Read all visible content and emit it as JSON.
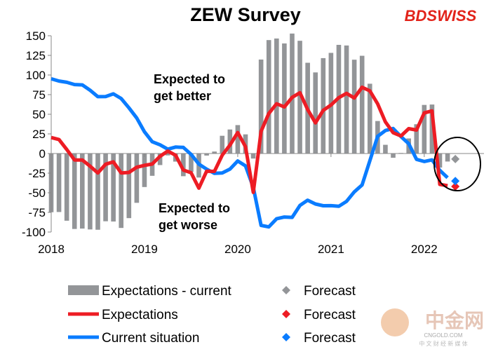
{
  "chart_data": {
    "type": "bar+line",
    "title": "ZEW Survey",
    "xlabel": "",
    "ylabel": "",
    "ylim": [
      -100,
      150
    ],
    "yticks": [
      150,
      125,
      100,
      75,
      50,
      25,
      0,
      -25,
      -50,
      -75,
      -100
    ],
    "xticks": [
      "2018",
      "2019",
      "2020",
      "2021",
      "2022"
    ],
    "start": "2018-01",
    "frequency": "monthly",
    "grid": false,
    "legend_position": "bottom",
    "annotations": [
      {
        "text_lines": [
          "Expected to",
          "get better"
        ]
      },
      {
        "text_lines": [
          "Expected to",
          "get worse"
        ]
      }
    ],
    "series": [
      {
        "name": "Expectations - current",
        "type": "bar",
        "color": "#939598",
        "forecast_name": "Forecast",
        "forecast": -7
      },
      {
        "name": "Expectations",
        "type": "line",
        "color": "#ed1c24",
        "values": [
          20.4,
          17.8,
          5.1,
          -8.2,
          -8.2,
          -16.1,
          -24.7,
          -13.7,
          -10.6,
          -24.7,
          -24.1,
          -17.5,
          -15.1,
          -13.4,
          -3.6,
          3.1,
          -2.1,
          -21.1,
          -24.5,
          -44.1,
          -22.5,
          -22.8,
          -2.1,
          10.7,
          26.7,
          8.7,
          -49.5,
          28.2,
          51.0,
          63.4,
          59.3,
          71.5,
          77.4,
          56.1,
          39.0,
          55.0,
          61.8,
          71.2,
          76.6,
          70.7,
          84.4,
          79.8,
          63.3,
          40.4,
          26.5,
          22.3,
          31.7,
          29.9,
          51.7,
          54.3,
          -39.3,
          -41.0
        ],
        "forecast_name": "Forecast",
        "forecast": -42
      },
      {
        "name": "Current situation",
        "type": "line",
        "color": "#0a7cff",
        "values": [
          95.2,
          92.3,
          90.7,
          87.9,
          87.4,
          80.6,
          72.4,
          72.6,
          76.0,
          70.1,
          58.2,
          45.3,
          27.6,
          15.0,
          11.1,
          5.5,
          8.2,
          7.8,
          -1.1,
          -13.5,
          -19.9,
          -25.3,
          -24.7,
          -19.9,
          -9.5,
          -15.7,
          -43.1,
          -91.5,
          -93.5,
          -83.1,
          -80.9,
          -81.3,
          -66.2,
          -59.5,
          -64.3,
          -66.5,
          -66.4,
          -67.2,
          -61.0,
          -48.8,
          -40.1,
          -9.1,
          21.9,
          29.3,
          31.9,
          21.6,
          12.5,
          -7.4,
          -10.2,
          -8.1,
          -21.4,
          -30.8
        ],
        "forecast_name": "Forecast",
        "forecast": -35
      }
    ]
  },
  "logos": {
    "brand": "BDSWISS",
    "watermark": "中金网",
    "watermark_sub": "CNGOLD.COM",
    "watermark_tagline": "中 文 财 经 新 媒 体"
  }
}
